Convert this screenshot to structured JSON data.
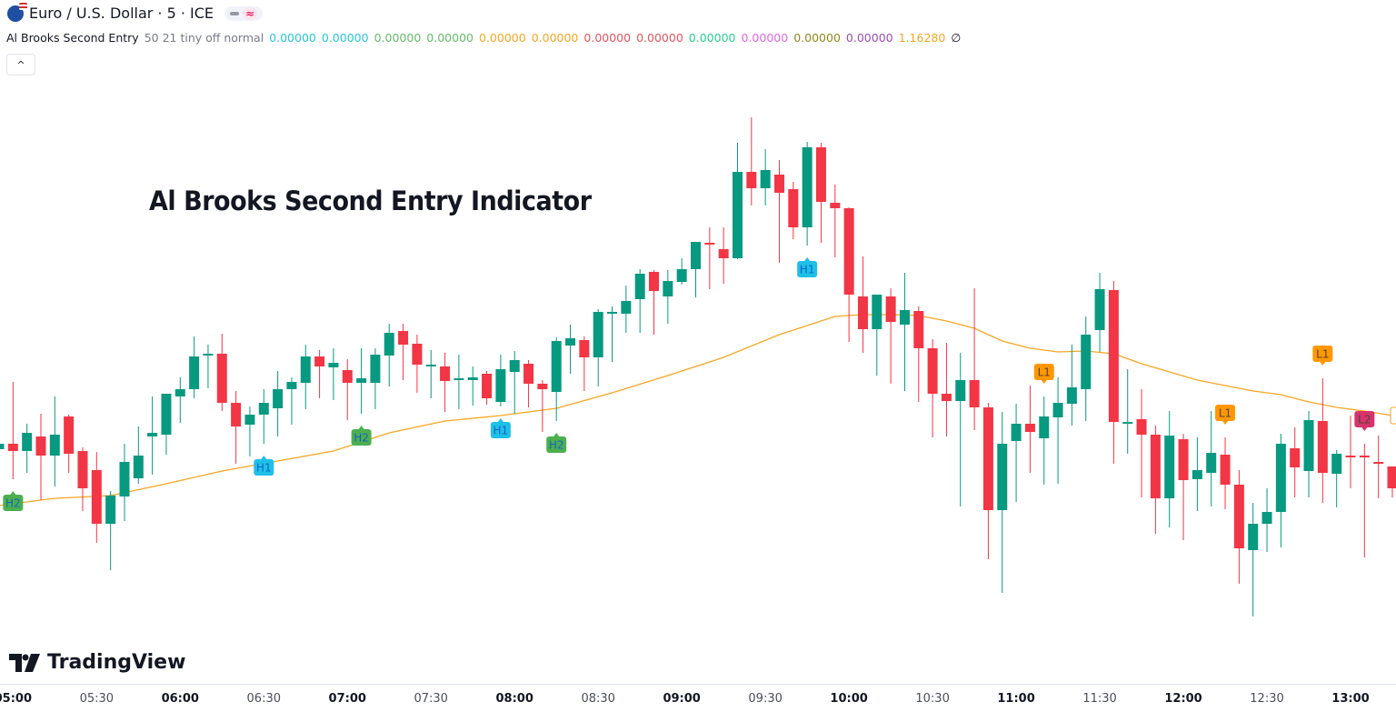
{
  "header": {
    "symbol": "Euro / U.S. Dollar · 5 · ICE",
    "wave_icon": "≈"
  },
  "indicator": {
    "name": "Al Brooks Second Entry",
    "params": "50 21 tiny off normal",
    "values": [
      {
        "text": "0.00000",
        "color": "#26c6da"
      },
      {
        "text": "0.00000",
        "color": "#26c6da"
      },
      {
        "text": "0.00000",
        "color": "#66bb6a"
      },
      {
        "text": "0.00000",
        "color": "#66bb6a"
      },
      {
        "text": "0.00000",
        "color": "#f5a623"
      },
      {
        "text": "0.00000",
        "color": "#f5a623"
      },
      {
        "text": "0.00000",
        "color": "#e5555f"
      },
      {
        "text": "0.00000",
        "color": "#e5555f"
      },
      {
        "text": "0.00000",
        "color": "#2bcf8f"
      },
      {
        "text": "0.00000",
        "color": "#e066e8"
      },
      {
        "text": "0.00000",
        "color": "#8f8a1e"
      },
      {
        "text": "0.00000",
        "color": "#9c4fb0"
      },
      {
        "text": "1.16280",
        "color": "#f5a623"
      }
    ],
    "empty_symbol": "∅",
    "collapse_icon": "^"
  },
  "overlay_title": "Al Brooks Second Entry Indicator",
  "brand": {
    "name": "TradingView"
  },
  "colors": {
    "up": "#089981",
    "down": "#f23645",
    "ma": "#f5a623",
    "H1": "#1ec0e8",
    "H2": "#4caf50",
    "L1": "#ff9800",
    "L2": "#d6336c"
  },
  "chart_data": {
    "type": "candlestick",
    "candle_fields": [
      "time",
      "open",
      "high",
      "low",
      "close"
    ],
    "candles": [
      [
        "04:55",
        1.16241,
        1.16249,
        1.1624,
        1.16247
      ],
      [
        "05:00",
        1.16247,
        1.16315,
        1.16208,
        1.16239
      ],
      [
        "05:05",
        1.16239,
        1.16269,
        1.16215,
        1.16259
      ],
      [
        "05:10",
        1.16255,
        1.1628,
        1.16185,
        1.16234
      ],
      [
        "05:15",
        1.16234,
        1.16299,
        1.162,
        1.16257
      ],
      [
        "05:20",
        1.16277,
        1.16279,
        1.16215,
        1.16236
      ],
      [
        "05:25",
        1.16239,
        1.16243,
        1.16173,
        1.16198
      ],
      [
        "05:30",
        1.16218,
        1.16238,
        1.16138,
        1.16159
      ],
      [
        "05:35",
        1.16159,
        1.16195,
        1.16108,
        1.1619
      ],
      [
        "05:40",
        1.16189,
        1.16247,
        1.16162,
        1.16227
      ],
      [
        "05:45",
        1.16209,
        1.16266,
        1.16203,
        1.16234
      ],
      [
        "05:50",
        1.16255,
        1.16299,
        1.16213,
        1.16259
      ],
      [
        "05:55",
        1.16257,
        1.16302,
        1.16235,
        1.16302
      ],
      [
        "06:00",
        1.16299,
        1.1632,
        1.1627,
        1.16307
      ],
      [
        "06:05",
        1.16307,
        1.16365,
        1.16297,
        1.16343
      ],
      [
        "06:10",
        1.16345,
        1.16356,
        1.16308,
        1.16346
      ],
      [
        "06:15",
        1.16346,
        1.16368,
        1.16283,
        1.16292
      ],
      [
        "06:20",
        1.16292,
        1.16305,
        1.16225,
        1.16266
      ],
      [
        "06:25",
        1.16268,
        1.16288,
        1.16233,
        1.16279
      ],
      [
        "06:30",
        1.16279,
        1.16307,
        1.16247,
        1.16292
      ],
      [
        "06:35",
        1.16286,
        1.16327,
        1.16255,
        1.16307
      ],
      [
        "06:40",
        1.16307,
        1.1632,
        1.16268,
        1.16315
      ],
      [
        "06:45",
        1.16314,
        1.16356,
        1.16285,
        1.16343
      ],
      [
        "06:50",
        1.16343,
        1.1635,
        1.16297,
        1.16332
      ],
      [
        "06:55",
        1.16331,
        1.16352,
        1.16295,
        1.16336
      ],
      [
        "07:00",
        1.16328,
        1.1634,
        1.16273,
        1.16314
      ],
      [
        "07:05",
        1.16314,
        1.16352,
        1.1628,
        1.16319
      ],
      [
        "07:10",
        1.16314,
        1.16352,
        1.16285,
        1.16345
      ],
      [
        "07:15",
        1.16344,
        1.16379,
        1.1631,
        1.16369
      ],
      [
        "07:20",
        1.16371,
        1.16379,
        1.16317,
        1.16356
      ],
      [
        "07:25",
        1.16357,
        1.16367,
        1.16303,
        1.16334
      ],
      [
        "07:30",
        1.16334,
        1.1635,
        1.16297,
        1.16334
      ],
      [
        "07:35",
        1.16332,
        1.16347,
        1.16282,
        1.16316
      ],
      [
        "07:40",
        1.16317,
        1.16345,
        1.16285,
        1.16319
      ],
      [
        "07:45",
        1.16317,
        1.16332,
        1.16289,
        1.1632
      ],
      [
        "07:50",
        1.16324,
        1.16327,
        1.1629,
        1.16297
      ],
      [
        "07:55",
        1.16293,
        1.16345,
        1.16288,
        1.16329
      ],
      [
        "08:00",
        1.16326,
        1.16349,
        1.1628,
        1.16339
      ],
      [
        "08:05",
        1.16335,
        1.16339,
        1.16287,
        1.16313
      ],
      [
        "08:10",
        1.16313,
        1.16317,
        1.1626,
        1.16307
      ],
      [
        "08:15",
        1.16304,
        1.16364,
        1.16272,
        1.1636
      ],
      [
        "08:20",
        1.16355,
        1.16378,
        1.16324,
        1.16363
      ],
      [
        "08:25",
        1.16361,
        1.16365,
        1.16305,
        1.16342
      ],
      [
        "08:30",
        1.16342,
        1.16395,
        1.1631,
        1.16392
      ],
      [
        "08:35",
        1.16392,
        1.16398,
        1.16337,
        1.16392
      ],
      [
        "08:40",
        1.1639,
        1.16421,
        1.16369,
        1.16404
      ],
      [
        "08:45",
        1.16406,
        1.16439,
        1.16369,
        1.16434
      ],
      [
        "08:50",
        1.16436,
        1.16438,
        1.16367,
        1.16415
      ],
      [
        "08:55",
        1.16409,
        1.16438,
        1.16379,
        1.16426
      ],
      [
        "09:00",
        1.16425,
        1.16451,
        1.16422,
        1.16439
      ],
      [
        "09:05",
        1.16439,
        1.16469,
        1.16408,
        1.16469
      ],
      [
        "09:10",
        1.16468,
        1.16485,
        1.16417,
        1.16466
      ],
      [
        "09:15",
        1.16461,
        1.16485,
        1.16423,
        1.16451
      ],
      [
        "09:20",
        1.16451,
        1.16578,
        1.1645,
        1.16546
      ],
      [
        "09:25",
        1.16546,
        1.16606,
        1.16509,
        1.16528
      ],
      [
        "09:30",
        1.16528,
        1.16571,
        1.16509,
        1.16548
      ],
      [
        "09:35",
        1.16543,
        1.16559,
        1.16446,
        1.16523
      ],
      [
        "09:40",
        1.16527,
        1.16535,
        1.16472,
        1.16485
      ],
      [
        "09:45",
        1.16485,
        1.16579,
        1.16465,
        1.16573
      ],
      [
        "09:50",
        1.16573,
        1.16578,
        1.16468,
        1.16513
      ],
      [
        "09:55",
        1.16512,
        1.16532,
        1.16452,
        1.16506
      ],
      [
        "10:00",
        1.16506,
        1.16507,
        1.16359,
        1.16411
      ],
      [
        "10:05",
        1.16409,
        1.16453,
        1.16347,
        1.16373
      ],
      [
        "10:10",
        1.16373,
        1.16411,
        1.16322,
        1.16411
      ],
      [
        "10:15",
        1.16409,
        1.16418,
        1.16313,
        1.16381
      ],
      [
        "10:20",
        1.16378,
        1.16435,
        1.16305,
        1.16394
      ],
      [
        "10:25",
        1.16393,
        1.16398,
        1.16293,
        1.16352
      ],
      [
        "10:30",
        1.16352,
        1.16362,
        1.16254,
        1.16302
      ],
      [
        "10:35",
        1.16302,
        1.16358,
        1.16255,
        1.16294
      ],
      [
        "10:40",
        1.16294,
        1.16347,
        1.16178,
        1.16317
      ],
      [
        "10:45",
        1.16317,
        1.16418,
        1.16262,
        1.16287
      ],
      [
        "10:50",
        1.16287,
        1.16292,
        1.1612,
        1.16174
      ],
      [
        "10:55",
        1.16174,
        1.16282,
        1.16083,
        1.16247
      ],
      [
        "11:00",
        1.1625,
        1.16291,
        1.16183,
        1.16269
      ],
      [
        "11:05",
        1.16269,
        1.16311,
        1.16215,
        1.1626
      ],
      [
        "11:10",
        1.16253,
        1.16299,
        1.16202,
        1.16277
      ],
      [
        "11:15",
        1.16276,
        1.1632,
        1.16203,
        1.16292
      ],
      [
        "11:20",
        1.16291,
        1.16356,
        1.16267,
        1.16309
      ],
      [
        "11:25",
        1.16307,
        1.16387,
        1.16272,
        1.16367
      ],
      [
        "11:30",
        1.16372,
        1.16435,
        1.16348,
        1.16417
      ],
      [
        "11:35",
        1.16416,
        1.16426,
        1.16225,
        1.16271
      ],
      [
        "11:40",
        1.16271,
        1.16329,
        1.16236,
        1.16271
      ],
      [
        "11:45",
        1.16274,
        1.16307,
        1.16188,
        1.16257
      ],
      [
        "11:50",
        1.16257,
        1.16267,
        1.16148,
        1.16187
      ],
      [
        "11:55",
        1.16187,
        1.16283,
        1.16155,
        1.16256
      ],
      [
        "12:00",
        1.16252,
        1.16258,
        1.16141,
        1.16207
      ],
      [
        "12:05",
        1.16208,
        1.16254,
        1.16173,
        1.16218
      ],
      [
        "12:10",
        1.16215,
        1.16283,
        1.16178,
        1.16237
      ],
      [
        "12:15",
        1.16235,
        1.16254,
        1.16175,
        1.16202
      ],
      [
        "12:20",
        1.16202,
        1.16218,
        1.16093,
        1.16132
      ],
      [
        "12:25",
        1.1613,
        1.16182,
        1.16057,
        1.16159
      ],
      [
        "12:30",
        1.16159,
        1.16198,
        1.16128,
        1.16172
      ],
      [
        "12:35",
        1.16172,
        1.16258,
        1.16133,
        1.16247
      ],
      [
        "12:40",
        1.16242,
        1.16265,
        1.16188,
        1.16221
      ],
      [
        "12:45",
        1.16217,
        1.16283,
        1.16188,
        1.16273
      ],
      [
        "12:50",
        1.16272,
        1.16319,
        1.16182,
        1.16215
      ],
      [
        "12:55",
        1.16214,
        1.1624,
        1.16177,
        1.16236
      ],
      [
        "13:00",
        1.16234,
        1.16278,
        1.16198,
        1.16233
      ],
      [
        "13:05",
        1.16234,
        1.16247,
        1.16122,
        1.16232
      ],
      [
        "13:10",
        1.16227,
        1.16256,
        1.16187,
        1.16225
      ],
      [
        "13:15",
        1.16222,
        1.16222,
        1.16188,
        1.16198
      ]
    ],
    "ma": [
      [
        "04:55",
        1.16179
      ],
      [
        "05:15",
        1.16187
      ],
      [
        "05:35",
        1.1619
      ],
      [
        "05:55",
        1.16203
      ],
      [
        "06:15",
        1.16217
      ],
      [
        "06:35",
        1.16228
      ],
      [
        "06:55",
        1.16239
      ],
      [
        "07:15",
        1.16259
      ],
      [
        "07:35",
        1.16272
      ],
      [
        "07:55",
        1.16278
      ],
      [
        "08:15",
        1.16286
      ],
      [
        "08:35",
        1.16303
      ],
      [
        "08:55",
        1.16322
      ],
      [
        "09:15",
        1.16342
      ],
      [
        "09:35",
        1.16367
      ],
      [
        "09:55",
        1.16387
      ],
      [
        "10:05",
        1.16389
      ],
      [
        "10:15",
        1.16389
      ],
      [
        "10:25",
        1.16388
      ],
      [
        "10:35",
        1.16382
      ],
      [
        "10:45",
        1.16374
      ],
      [
        "10:55",
        1.1636
      ],
      [
        "11:05",
        1.16352
      ],
      [
        "11:15",
        1.16348
      ],
      [
        "11:25",
        1.16349
      ],
      [
        "11:35",
        1.16346
      ],
      [
        "11:45",
        1.16335
      ],
      [
        "11:55",
        1.16326
      ],
      [
        "12:05",
        1.16317
      ],
      [
        "12:15",
        1.16311
      ],
      [
        "12:25",
        1.16305
      ],
      [
        "12:35",
        1.16301
      ],
      [
        "12:45",
        1.16293
      ],
      [
        "12:55",
        1.16287
      ],
      [
        "13:05",
        1.16283
      ],
      [
        "13:15",
        1.16278
      ]
    ],
    "signals": [
      {
        "time": "05:00",
        "label": "H2"
      },
      {
        "time": "06:30",
        "label": "H1"
      },
      {
        "time": "07:05",
        "label": "H2"
      },
      {
        "time": "07:55",
        "label": "H1"
      },
      {
        "time": "08:15",
        "label": "H2"
      },
      {
        "time": "09:45",
        "label": "H1"
      },
      {
        "time": "11:10",
        "label": "L1"
      },
      {
        "time": "12:15",
        "label": "L1"
      },
      {
        "time": "12:50",
        "label": "L1"
      },
      {
        "time": "13:05",
        "label": "L2"
      }
    ],
    "x_ticks": [
      {
        "label": "05:00",
        "major": true
      },
      {
        "label": "05:30",
        "major": false
      },
      {
        "label": "06:00",
        "major": true
      },
      {
        "label": "06:30",
        "major": false
      },
      {
        "label": "07:00",
        "major": true
      },
      {
        "label": "07:30",
        "major": false
      },
      {
        "label": "08:00",
        "major": true
      },
      {
        "label": "08:30",
        "major": false
      },
      {
        "label": "09:00",
        "major": true
      },
      {
        "label": "09:30",
        "major": false
      },
      {
        "label": "10:00",
        "major": true
      },
      {
        "label": "10:30",
        "major": false
      },
      {
        "label": "11:00",
        "major": true
      },
      {
        "label": "11:30",
        "major": false
      },
      {
        "label": "12:00",
        "major": true
      },
      {
        "label": "12:30",
        "major": false
      },
      {
        "label": "13:00",
        "major": true
      }
    ],
    "grid": false
  }
}
